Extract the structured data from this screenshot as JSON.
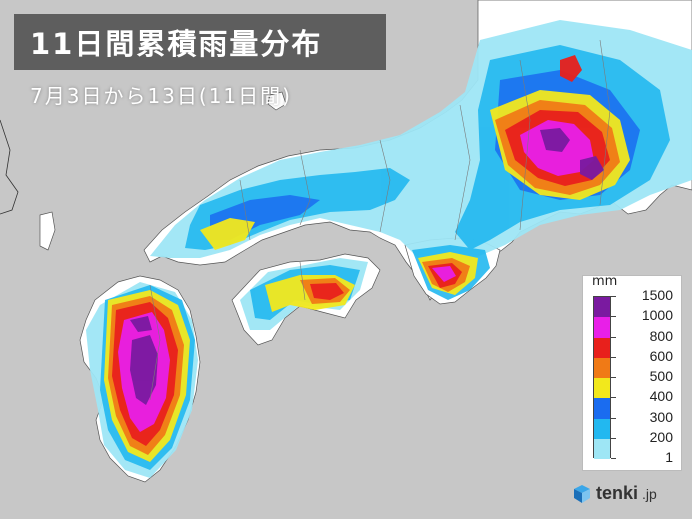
{
  "title": "11日間累積雨量分布",
  "subtitle": "7月3日から13日(11日間)",
  "legend": {
    "unit": "mm",
    "levels": [
      {
        "label": "1500",
        "color": "#7a1aa0"
      },
      {
        "label": "1000",
        "color": "#e81fe8"
      },
      {
        "label": "800",
        "color": "#e8201c"
      },
      {
        "label": "600",
        "color": "#f07a16"
      },
      {
        "label": "500",
        "color": "#f2e81c"
      },
      {
        "label": "400",
        "color": "#1a6cf0"
      },
      {
        "label": "300",
        "color": "#22b8f0"
      },
      {
        "label": "200",
        "color": "#9ee6f5"
      },
      {
        "label": "1",
        "color": ""
      }
    ]
  },
  "brand": {
    "name": "tenki",
    "domain": ".jp",
    "logo_icon": "tenki-cube-icon"
  },
  "colors": {
    "land": "#ffffff",
    "sea": "#c7c7c7"
  }
}
